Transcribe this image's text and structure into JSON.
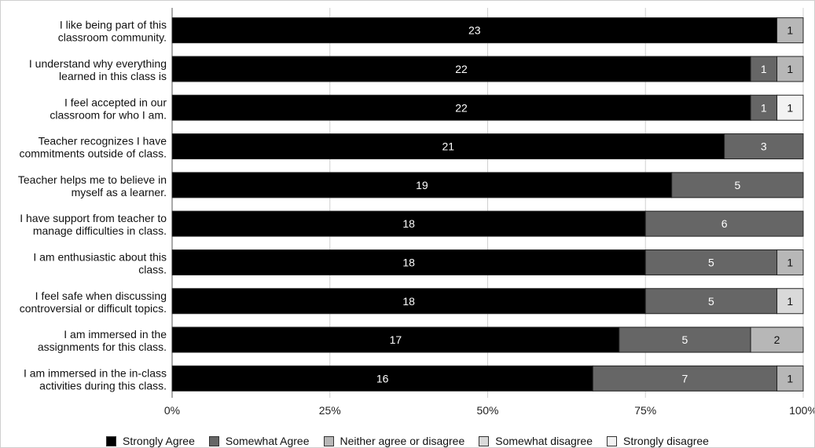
{
  "chart_data": {
    "type": "bar",
    "orientation": "horizontal",
    "stacked": true,
    "normalized": true,
    "categories": [
      [
        "I like being part of this",
        "classroom community."
      ],
      [
        "I understand why everything",
        "learned in this class is"
      ],
      [
        "I feel accepted in our",
        "classroom for who I am."
      ],
      [
        "Teacher recognizes I have",
        "commitments outside of class."
      ],
      [
        "Teacher helps me to believe in",
        "myself as a learner."
      ],
      [
        "I have support from teacher to",
        "manage difficulties in class."
      ],
      [
        "I am enthusiastic about this",
        "class."
      ],
      [
        "I feel safe when discussing",
        "controversial or difficult topics."
      ],
      [
        "I am immersed in the",
        "assignments for this class."
      ],
      [
        "I am immersed in the in-class",
        "activities during this class."
      ]
    ],
    "series": [
      {
        "name": "Strongly Agree",
        "color": "#000000",
        "label_color": "#ffffff",
        "values": [
          23,
          22,
          22,
          21,
          19,
          18,
          18,
          18,
          17,
          16
        ]
      },
      {
        "name": "Somewhat Agree",
        "color": "#666666",
        "label_color": "#ffffff",
        "values": [
          0,
          1,
          1,
          3,
          5,
          6,
          5,
          5,
          5,
          7
        ]
      },
      {
        "name": "Neither agree or disagree",
        "color": "#b7b7b7",
        "label_color": "#111111",
        "values": [
          1,
          1,
          0,
          0,
          0,
          0,
          1,
          0,
          2,
          1
        ]
      },
      {
        "name": "Somewhat disagree",
        "color": "#d9d9d9",
        "label_color": "#111111",
        "values": [
          0,
          0,
          0,
          0,
          0,
          0,
          0,
          1,
          0,
          0
        ]
      },
      {
        "name": "Strongly disagree",
        "color": "#f3f3f3",
        "label_color": "#111111",
        "values": [
          0,
          0,
          1,
          0,
          0,
          0,
          0,
          0,
          0,
          0
        ]
      }
    ],
    "xaxis": {
      "ticks": [
        "0%",
        "25%",
        "50%",
        "75%",
        "100%"
      ],
      "range": [
        0,
        100
      ]
    },
    "legend_position": "bottom",
    "grid": true
  }
}
